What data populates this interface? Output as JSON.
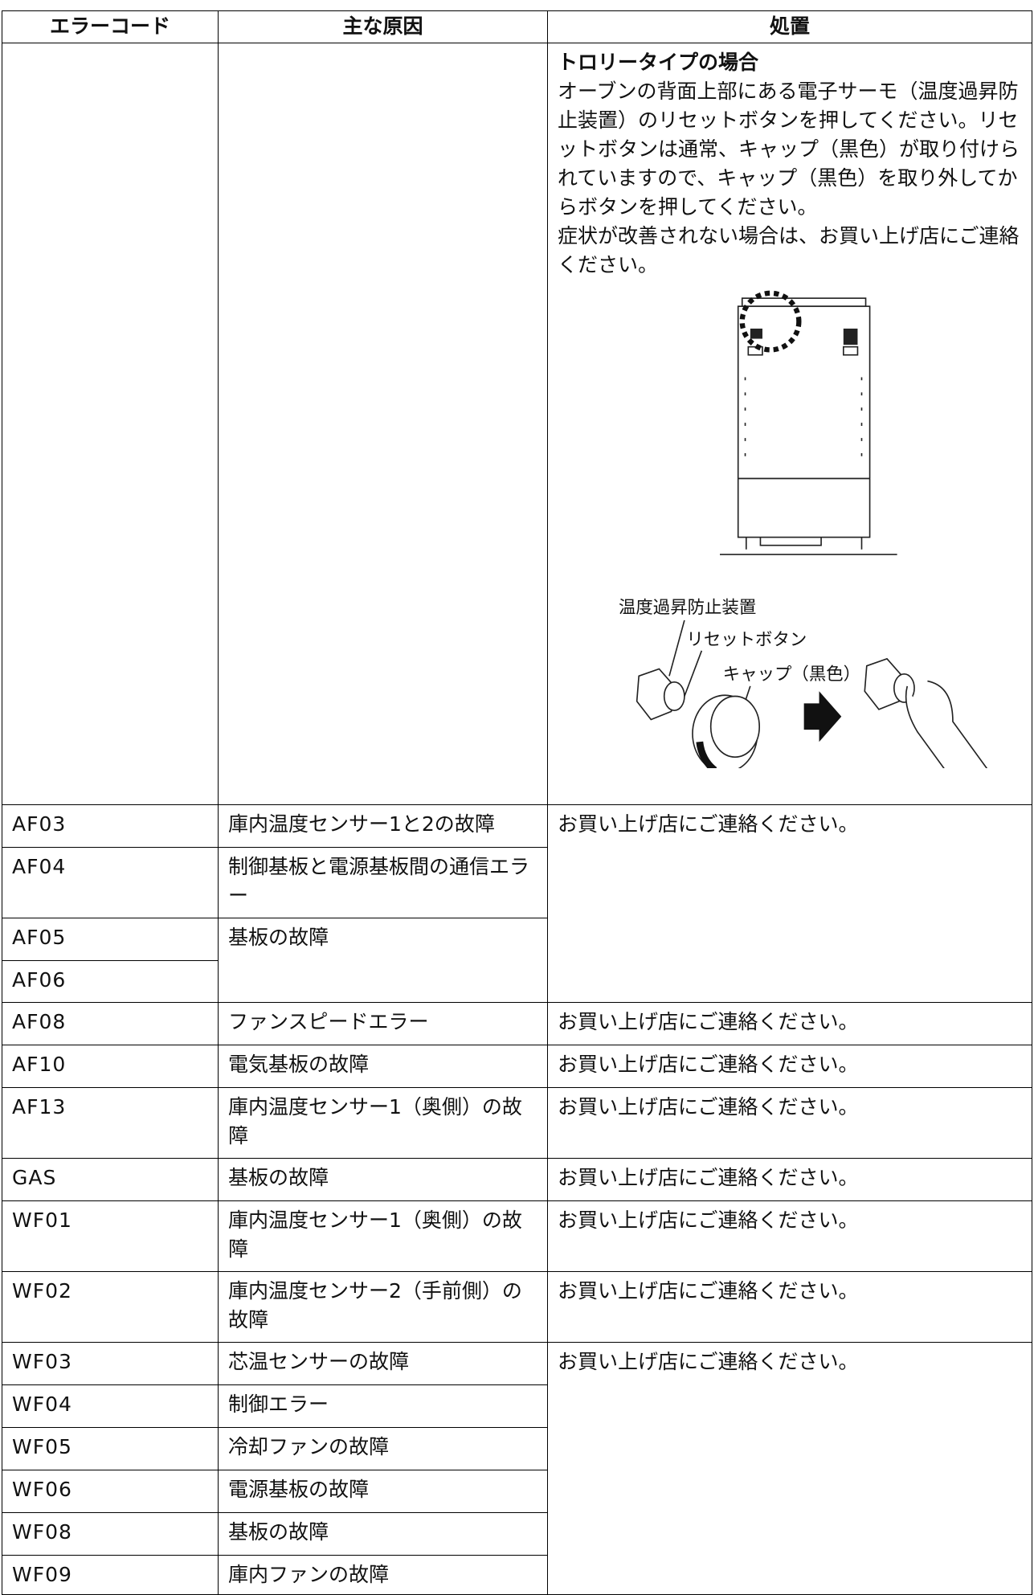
{
  "header": [
    "エラーコード",
    "主な原因",
    "処置"
  ],
  "rows": [
    {
      "action": {
        "heading": "トロリータイプの場合",
        "paragraphs": [
          "オーブンの背面上部にある電子サーモ（温度過昇防止装置）のリセットボタンを押してください。リセットボタンは通常、キャップ（黒色）が取り付けられていますので、キャップ（黒色）を取り外してからボタンを押してください。",
          "症状が改善されない場合は、お買い上げ店にご連絡ください。"
        ],
        "figure_labels": [
          "温度過昇防止装置",
          "リセットボタン",
          "キャップ（黒色）"
        ]
      }
    },
    {
      "code": "AF03",
      "cause": "庫内温度センサー1と2の故障",
      "action": "お買い上げ店にご連絡ください。"
    },
    {
      "code": "AF04",
      "cause": "制御基板と電源基板間の通信エラー"
    },
    {
      "code": "AF05",
      "cause": "基板の故障"
    },
    {
      "code": "AF06"
    },
    {
      "code": "AF08",
      "cause": "ファンスピードエラー",
      "action": "お買い上げ店にご連絡ください。"
    },
    {
      "code": "AF10",
      "cause": "電気基板の故障",
      "action": "お買い上げ店にご連絡ください。"
    },
    {
      "code": "AF13",
      "cause": "庫内温度センサー1（奥側）の故障",
      "action": "お買い上げ店にご連絡ください。"
    },
    {
      "code": "GAS",
      "cause": "基板の故障",
      "action": "お買い上げ店にご連絡ください。"
    },
    {
      "code": "WF01",
      "cause": "庫内温度センサー1（奥側）の故障",
      "action": "お買い上げ店にご連絡ください。"
    },
    {
      "code": "WF02",
      "cause": "庫内温度センサー2（手前側）の故障",
      "action": "お買い上げ店にご連絡ください。"
    },
    {
      "code": "WF03",
      "cause": "芯温センサーの故障",
      "action": "お買い上げ店にご連絡ください。"
    },
    {
      "code": "WF04",
      "cause": "制御エラー"
    },
    {
      "code": "WF05",
      "cause": "冷却ファンの故障"
    },
    {
      "code": "WF06",
      "cause": "電源基板の故障"
    },
    {
      "code": "WF08",
      "cause": "基板の故障"
    },
    {
      "code": "WF09",
      "cause": "庫内ファンの故障"
    }
  ]
}
